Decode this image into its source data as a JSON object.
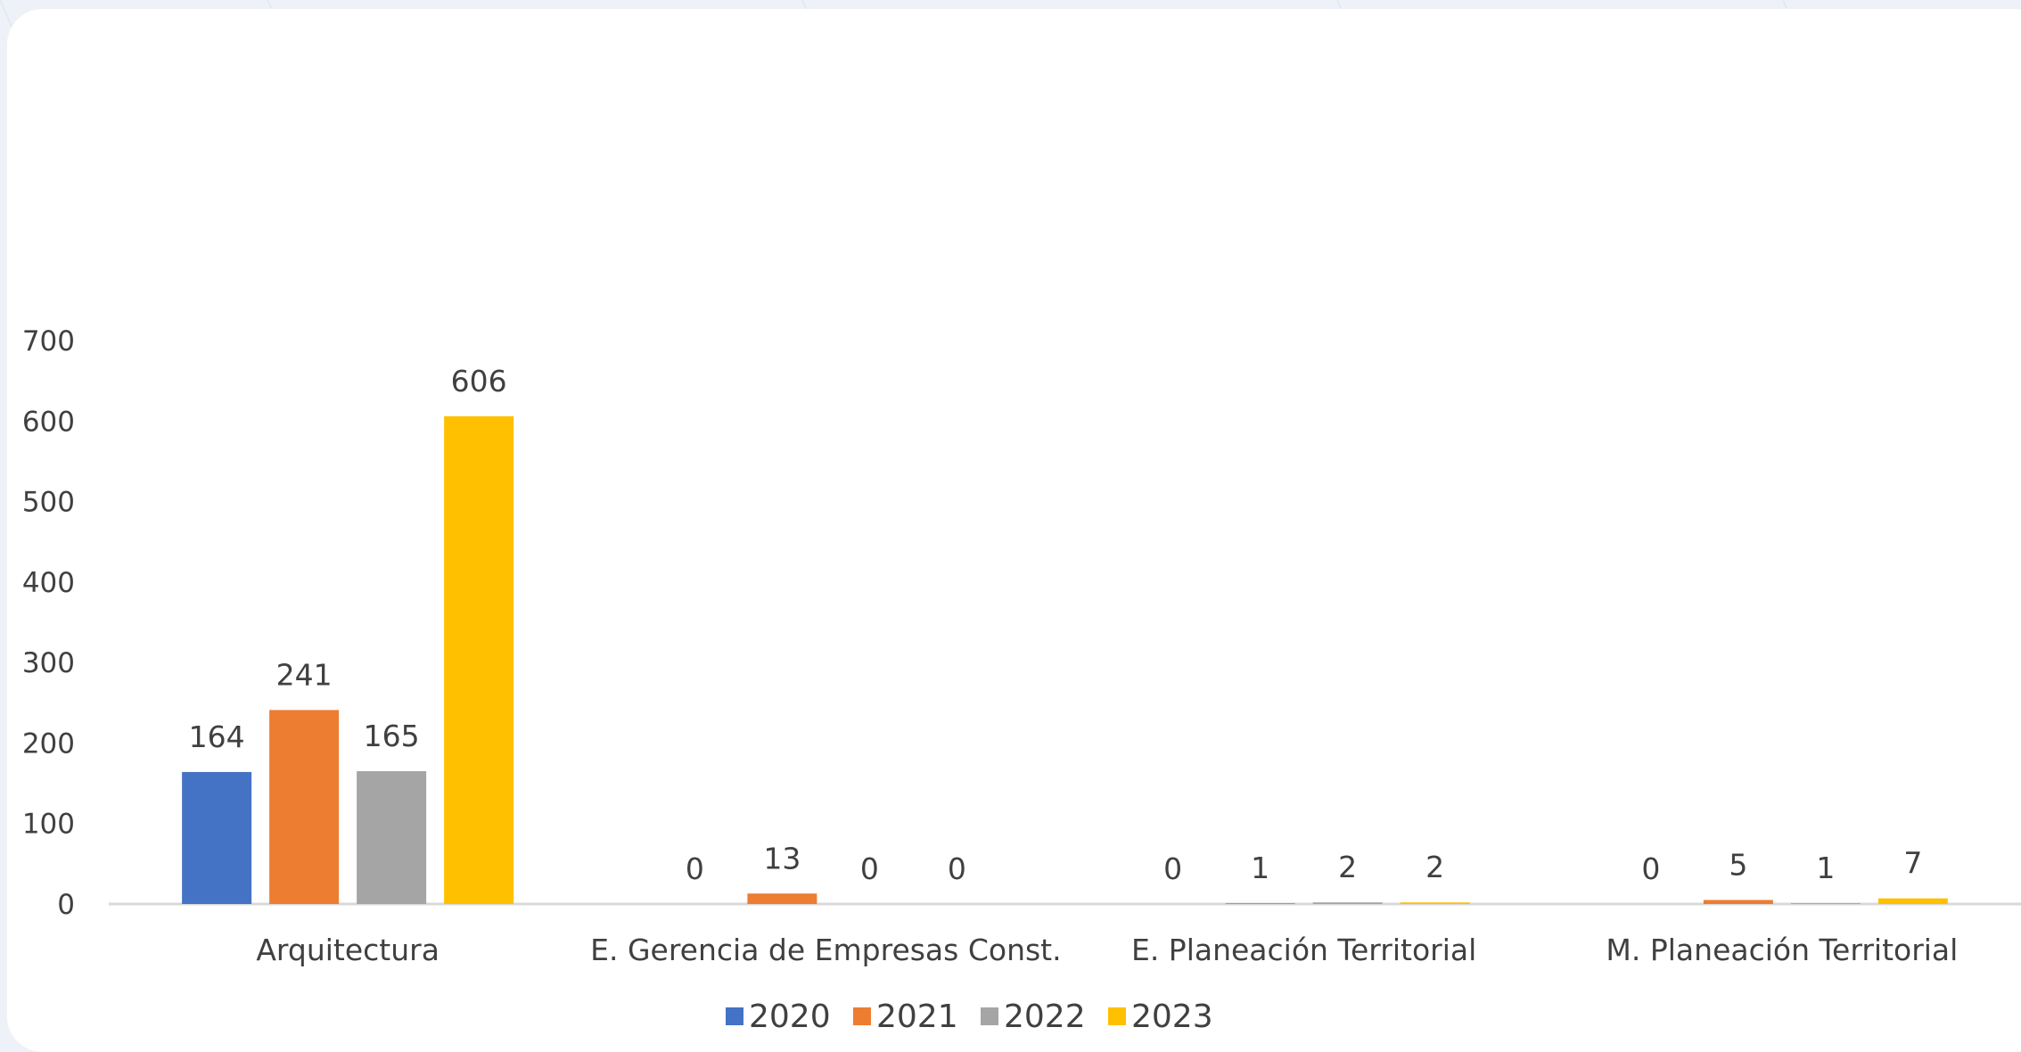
{
  "chart_data": {
    "type": "bar",
    "title": "",
    "xlabel": "",
    "ylabel": "",
    "categories": [
      "Arquitectura",
      "E. Gerencia de Empresas Const.",
      "E. Planeación Territorial",
      "M. Planeación Territorial"
    ],
    "series": [
      {
        "name": "2020",
        "color": "#4472c4",
        "values": [
          164,
          0,
          0,
          0
        ]
      },
      {
        "name": "2021",
        "color": "#ed7d31",
        "values": [
          241,
          13,
          1,
          5
        ]
      },
      {
        "name": "2022",
        "color": "#a5a5a5",
        "values": [
          165,
          0,
          2,
          1
        ]
      },
      {
        "name": "2023",
        "color": "#ffc000",
        "values": [
          606,
          0,
          2,
          7
        ]
      }
    ],
    "ylim": [
      0,
      700
    ],
    "yticks": [
      "0",
      "100",
      "200",
      "300",
      "400",
      "500",
      "600",
      "700"
    ],
    "grid": false,
    "legend_position": "bottom",
    "data_labels": true
  }
}
